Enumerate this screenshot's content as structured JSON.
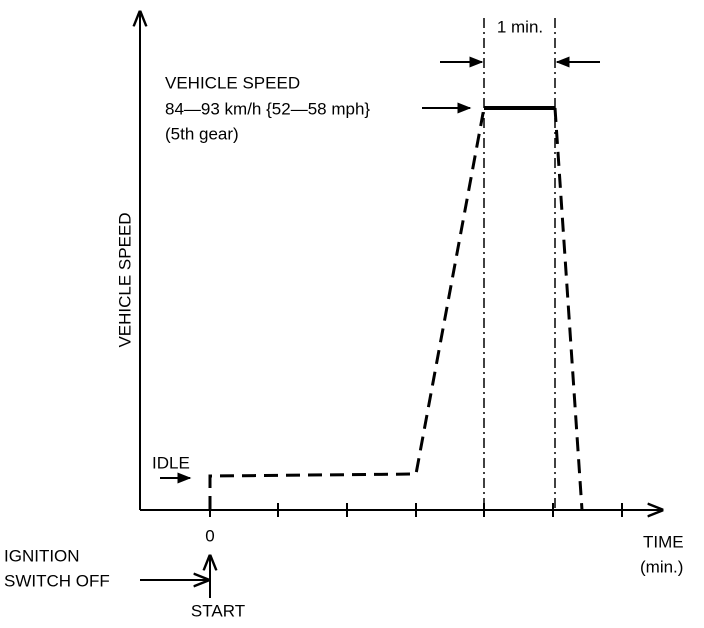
{
  "y_axis_label": "VEHICLE SPEED",
  "x_axis_label": {
    "title": "TIME",
    "unit": "(min.)"
  },
  "origin_label": "0",
  "ignition": {
    "line1": "IGNITION",
    "line2": "SWITCH OFF"
  },
  "start_label": "START",
  "idle_label": "IDLE",
  "speed_note": {
    "line1": "VEHICLE SPEED",
    "line2": "84—93 km/h {52—58 mph}",
    "line3": "(5th gear)"
  },
  "duration_label": "1 min."
}
